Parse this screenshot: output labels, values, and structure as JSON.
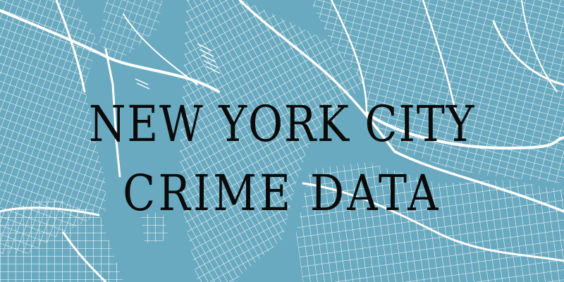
{
  "banner": {
    "title_line_1": "NEW YORK CITY",
    "title_line_2": "CRIME DATA"
  },
  "map": {
    "water_color": "#6aaac0",
    "street_color": "#ffffff",
    "text_color": "#0b0b0b"
  }
}
